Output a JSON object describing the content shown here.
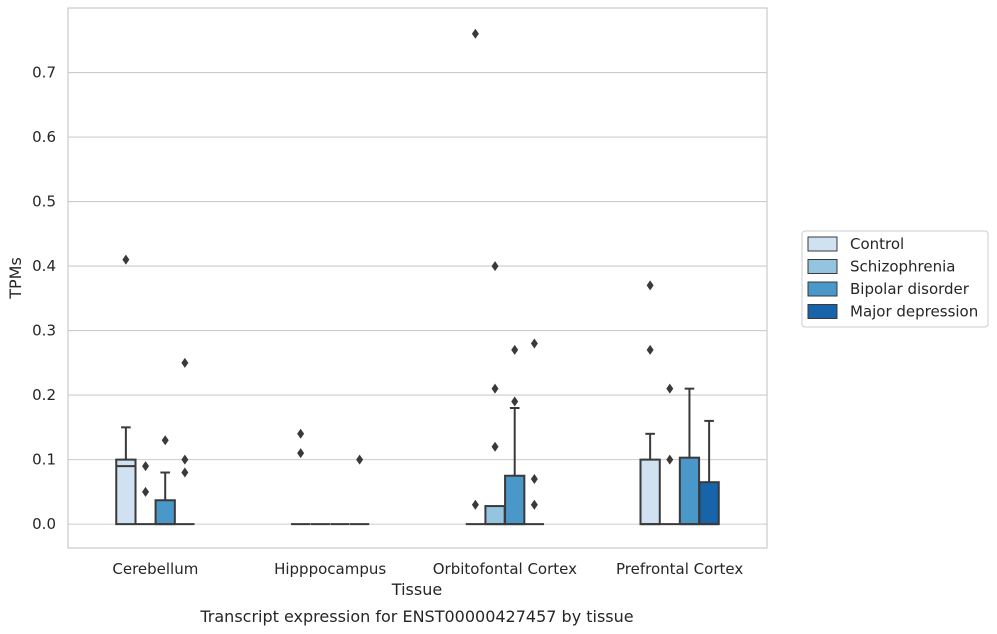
{
  "caption": "Transcript expression for ENST00000427457 by tissue",
  "chart_data": {
    "type": "box",
    "xlabel": "Tissue",
    "ylabel": "TPMs",
    "ylim": [
      -0.037,
      0.8
    ],
    "yticks": [
      0.0,
      0.1,
      0.2,
      0.3,
      0.4,
      0.5,
      0.6,
      0.7
    ],
    "ytick_labels": [
      "0.0",
      "0.1",
      "0.2",
      "0.3",
      "0.4",
      "0.5",
      "0.6",
      "0.7"
    ],
    "grid": true,
    "legend_position": "right",
    "categories": [
      "Cerebellum",
      "Hipppocampus",
      "Orbitofontal Cortex",
      "Prefrontal Cortex"
    ],
    "series": [
      {
        "name": "Control",
        "color": "#d0e1f2",
        "boxes": [
          {
            "min": 0.0,
            "q1": 0.0,
            "median": 0.09,
            "q3": 0.1,
            "max": 0.15,
            "outliers": [
              0.41
            ]
          },
          {
            "min": 0.0,
            "q1": 0.0,
            "median": 0.0,
            "q3": 0.0,
            "max": 0.0,
            "outliers": [
              0.14,
              0.11
            ]
          },
          {
            "min": 0.0,
            "q1": 0.0,
            "median": 0.0,
            "q3": 0.0,
            "max": 0.0,
            "outliers": [
              0.76,
              0.03
            ]
          },
          {
            "min": 0.0,
            "q1": 0.0,
            "median": 0.0,
            "q3": 0.1,
            "max": 0.14,
            "outliers": [
              0.37,
              0.27
            ]
          }
        ]
      },
      {
        "name": "Schizophrenia",
        "color": "#94c4df",
        "boxes": [
          {
            "min": 0.0,
            "q1": 0.0,
            "median": 0.0,
            "q3": 0.0,
            "max": 0.0,
            "outliers": [
              0.09,
              0.05
            ]
          },
          {
            "min": 0.0,
            "q1": 0.0,
            "median": 0.0,
            "q3": 0.0,
            "max": 0.0,
            "outliers": []
          },
          {
            "min": 0.0,
            "q1": 0.0,
            "median": 0.0,
            "q3": 0.028,
            "max": 0.028,
            "outliers": [
              0.4,
              0.21,
              0.12
            ]
          },
          {
            "min": 0.0,
            "q1": 0.0,
            "median": 0.0,
            "q3": 0.0,
            "max": 0.0,
            "outliers": [
              0.21,
              0.1
            ]
          }
        ]
      },
      {
        "name": "Bipolar disorder",
        "color": "#4a98c9",
        "boxes": [
          {
            "min": 0.0,
            "q1": 0.0,
            "median": 0.0,
            "q3": 0.037,
            "max": 0.08,
            "outliers": [
              0.13
            ]
          },
          {
            "min": 0.0,
            "q1": 0.0,
            "median": 0.0,
            "q3": 0.0,
            "max": 0.0,
            "outliers": []
          },
          {
            "min": 0.0,
            "q1": 0.0,
            "median": 0.0,
            "q3": 0.075,
            "max": 0.18,
            "outliers": [
              0.27,
              0.19
            ]
          },
          {
            "min": 0.0,
            "q1": 0.0,
            "median": 0.0,
            "q3": 0.103,
            "max": 0.21,
            "outliers": []
          }
        ]
      },
      {
        "name": "Major depression",
        "color": "#1764ab",
        "boxes": [
          {
            "min": 0.0,
            "q1": 0.0,
            "median": 0.0,
            "q3": 0.0,
            "max": 0.0,
            "outliers": [
              0.25,
              0.1,
              0.08
            ]
          },
          {
            "min": 0.0,
            "q1": 0.0,
            "median": 0.0,
            "q3": 0.0,
            "max": 0.0,
            "outliers": [
              0.1
            ]
          },
          {
            "min": 0.0,
            "q1": 0.0,
            "median": 0.0,
            "q3": 0.0,
            "max": 0.0,
            "outliers": [
              0.28,
              0.07,
              0.03
            ]
          },
          {
            "min": 0.0,
            "q1": 0.0,
            "median": 0.0,
            "q3": 0.065,
            "max": 0.16,
            "outliers": []
          }
        ]
      }
    ]
  }
}
